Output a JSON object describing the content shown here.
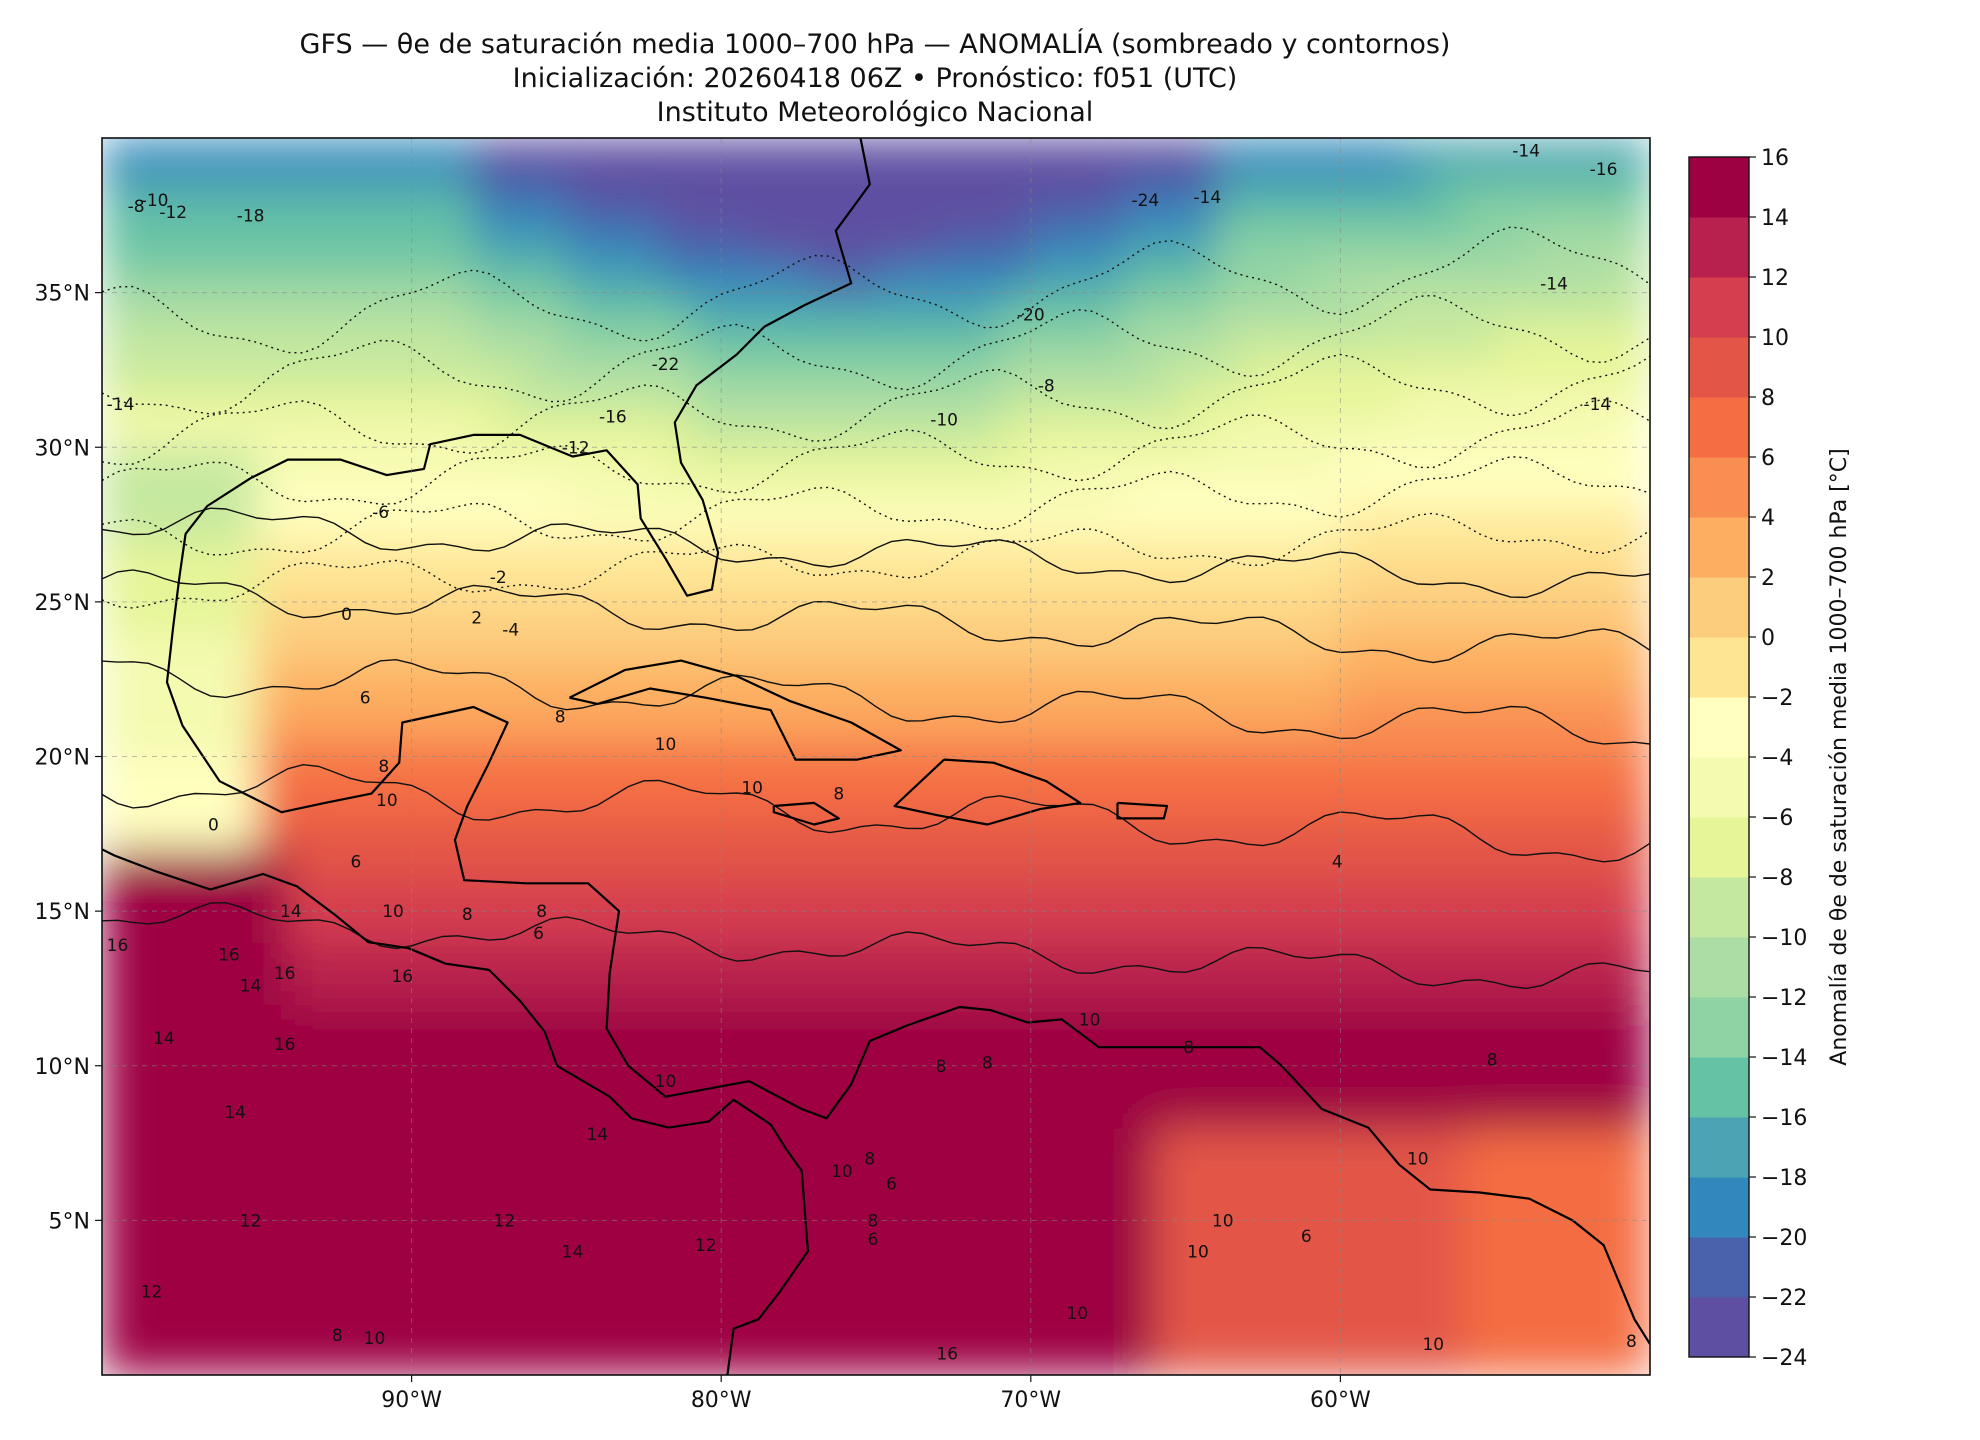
{
  "title": {
    "line1": "GFS — θe de saturación media 1000–700 hPa — ANOMALÍA (sombreado y contornos)",
    "line2": "Inicialización: 20260418 06Z   •   Pronóstico: f051 (UTC)",
    "line3": "Instituto Meteorológico Nacional"
  },
  "map": {
    "lon_range": [
      -100,
      -50
    ],
    "lat_range": [
      0,
      40
    ],
    "lat_ticks": [
      {
        "value": 35,
        "label": "35°N"
      },
      {
        "value": 30,
        "label": "30°N"
      },
      {
        "value": 25,
        "label": "25°N"
      },
      {
        "value": 20,
        "label": "20°N"
      },
      {
        "value": 15,
        "label": "15°N"
      },
      {
        "value": 10,
        "label": "10°N"
      },
      {
        "value": 5,
        "label": "5°N"
      }
    ],
    "lon_ticks": [
      {
        "value": -90,
        "label": "90°W"
      },
      {
        "value": -80,
        "label": "80°W"
      },
      {
        "value": -70,
        "label": "70°W"
      },
      {
        "value": -60,
        "label": "60°W"
      }
    ],
    "gridlines": true
  },
  "colorbar": {
    "label": "Anomalía de θe de saturación media 1000–700 hPa [°C]",
    "levels": [
      -24,
      -22,
      -20,
      -18,
      -16,
      -14,
      -12,
      -10,
      -8,
      -6,
      -4,
      -2,
      0,
      2,
      4,
      6,
      8,
      10,
      12,
      14,
      16
    ],
    "tick_labels": [
      "−24",
      "−22",
      "−20",
      "−18",
      "−16",
      "−14",
      "−12",
      "−10",
      "−8",
      "−6",
      "−4",
      "−2",
      "0",
      "2",
      "4",
      "6",
      "8",
      "10",
      "12",
      "14",
      "16"
    ],
    "colors": [
      "#5e4fa2",
      "#4a62ac",
      "#3288bd",
      "#4ba3b3",
      "#66c2a5",
      "#8fd3a4",
      "#abdda4",
      "#c4e89f",
      "#e6f598",
      "#f4fab0",
      "#ffffbf",
      "#fee594",
      "#fdcd7e",
      "#fdae61",
      "#f98e52",
      "#f46d43",
      "#e35647",
      "#d53e4f",
      "#b8214d",
      "#9e0142"
    ]
  },
  "contour_labels": [
    {
      "text": "-24",
      "lon": -66.3,
      "lat": 38.0
    },
    {
      "text": "-22",
      "lon": -81.8,
      "lat": 32.7
    },
    {
      "text": "-20",
      "lon": -70.0,
      "lat": 34.3
    },
    {
      "text": "-18",
      "lon": -95.2,
      "lat": 37.5
    },
    {
      "text": "-16",
      "lon": -83.5,
      "lat": 31.0
    },
    {
      "text": "-16",
      "lon": -51.5,
      "lat": 39.0
    },
    {
      "text": "-14",
      "lon": -54.0,
      "lat": 39.6
    },
    {
      "text": "-14",
      "lon": -64.3,
      "lat": 38.1
    },
    {
      "text": "-14",
      "lon": -53.1,
      "lat": 35.3
    },
    {
      "text": "-14",
      "lon": -51.7,
      "lat": 31.4
    },
    {
      "text": "-14",
      "lon": -99.4,
      "lat": 31.4
    },
    {
      "text": "-12",
      "lon": -84.7,
      "lat": 30.0
    },
    {
      "text": "-12",
      "lon": -97.7,
      "lat": 37.6
    },
    {
      "text": "-10",
      "lon": -98.3,
      "lat": 38.0
    },
    {
      "text": "-10",
      "lon": -72.8,
      "lat": 30.9
    },
    {
      "text": "-8",
      "lon": -98.9,
      "lat": 37.8
    },
    {
      "text": "-8",
      "lon": -69.5,
      "lat": 32.0
    },
    {
      "text": "-6",
      "lon": -91.0,
      "lat": 27.9
    },
    {
      "text": "-4",
      "lon": -86.8,
      "lat": 24.1
    },
    {
      "text": "-2",
      "lon": -87.2,
      "lat": 25.8
    },
    {
      "text": "0",
      "lon": -92.1,
      "lat": 24.6
    },
    {
      "text": "2",
      "lon": -87.9,
      "lat": 24.5
    },
    {
      "text": "0",
      "lon": -96.4,
      "lat": 17.8
    },
    {
      "text": "6",
      "lon": -91.5,
      "lat": 21.9
    },
    {
      "text": "8",
      "lon": -85.2,
      "lat": 21.3
    },
    {
      "text": "10",
      "lon": -81.8,
      "lat": 20.4
    },
    {
      "text": "10",
      "lon": -79.0,
      "lat": 19.0
    },
    {
      "text": "8",
      "lon": -90.9,
      "lat": 19.7
    },
    {
      "text": "10",
      "lon": -90.8,
      "lat": 18.6
    },
    {
      "text": "8",
      "lon": -76.2,
      "lat": 18.8
    },
    {
      "text": "6",
      "lon": -91.8,
      "lat": 16.6
    },
    {
      "text": "10",
      "lon": -90.6,
      "lat": 15.0
    },
    {
      "text": "8",
      "lon": -88.2,
      "lat": 14.9
    },
    {
      "text": "8",
      "lon": -85.8,
      "lat": 15.0
    },
    {
      "text": "6",
      "lon": -85.9,
      "lat": 14.3
    },
    {
      "text": "4",
      "lon": -60.1,
      "lat": 16.6
    },
    {
      "text": "14",
      "lon": -93.9,
      "lat": 15.0
    },
    {
      "text": "16",
      "lon": -99.5,
      "lat": 13.9
    },
    {
      "text": "16",
      "lon": -95.9,
      "lat": 13.6
    },
    {
      "text": "16",
      "lon": -94.1,
      "lat": 13.0
    },
    {
      "text": "14",
      "lon": -95.2,
      "lat": 12.6
    },
    {
      "text": "16",
      "lon": -90.3,
      "lat": 12.9
    },
    {
      "text": "14",
      "lon": -98.0,
      "lat": 10.9
    },
    {
      "text": "16",
      "lon": -94.1,
      "lat": 10.7
    },
    {
      "text": "14",
      "lon": -95.7,
      "lat": 8.5
    },
    {
      "text": "14",
      "lon": -84.0,
      "lat": 7.8
    },
    {
      "text": "10",
      "lon": -68.1,
      "lat": 11.5
    },
    {
      "text": "10",
      "lon": -81.8,
      "lat": 9.5
    },
    {
      "text": "8",
      "lon": -72.9,
      "lat": 10.0
    },
    {
      "text": "8",
      "lon": -71.4,
      "lat": 10.1
    },
    {
      "text": "8",
      "lon": -64.9,
      "lat": 10.6
    },
    {
      "text": "8",
      "lon": -55.1,
      "lat": 10.2
    },
    {
      "text": "10",
      "lon": -76.1,
      "lat": 6.6
    },
    {
      "text": "8",
      "lon": -75.2,
      "lat": 7.0
    },
    {
      "text": "6",
      "lon": -74.5,
      "lat": 6.2
    },
    {
      "text": "8",
      "lon": -75.1,
      "lat": 5.0
    },
    {
      "text": "6",
      "lon": -75.1,
      "lat": 4.4
    },
    {
      "text": "10",
      "lon": -57.5,
      "lat": 7.0
    },
    {
      "text": "10",
      "lon": -63.8,
      "lat": 5.0
    },
    {
      "text": "10",
      "lon": -64.6,
      "lat": 4.0
    },
    {
      "text": "6",
      "lon": -61.1,
      "lat": 4.5
    },
    {
      "text": "10",
      "lon": -68.5,
      "lat": 2.0
    },
    {
      "text": "12",
      "lon": -95.2,
      "lat": 5.0
    },
    {
      "text": "12",
      "lon": -87.0,
      "lat": 5.0
    },
    {
      "text": "12",
      "lon": -98.4,
      "lat": 2.7
    },
    {
      "text": "12",
      "lon": -80.5,
      "lat": 4.2
    },
    {
      "text": "14",
      "lon": -84.8,
      "lat": 4.0
    },
    {
      "text": "8",
      "lon": -92.4,
      "lat": 1.3
    },
    {
      "text": "10",
      "lon": -91.2,
      "lat": 1.2
    },
    {
      "text": "16",
      "lon": -72.7,
      "lat": 0.7
    },
    {
      "text": "10",
      "lon": -57.0,
      "lat": 1.0
    },
    {
      "text": "8",
      "lon": -50.6,
      "lat": 1.1
    }
  ]
}
